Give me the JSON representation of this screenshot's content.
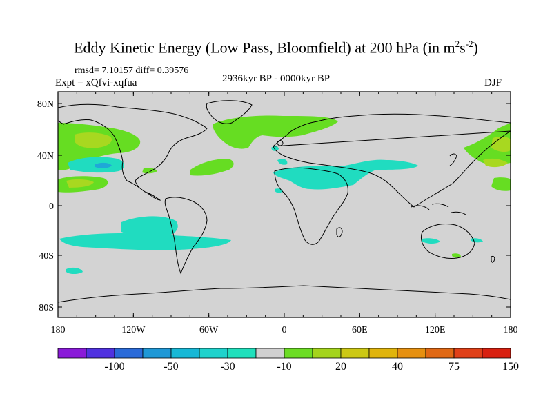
{
  "title": {
    "text": "Eddy Kinetic Energy (Low Pass, Bloomfield) at 200 hPa (in m",
    "sup1": "2",
    "mid": "s",
    "sup2": "-2",
    "close": ")"
  },
  "stats": "rmsd= 7.10157 diff= 0.39576",
  "experiment": "Expt = xQfvi-xqfua",
  "period": "2936kyr BP - 0000kyr BP",
  "season": "DJF",
  "lat_labels": [
    "80N",
    "40N",
    "0",
    "40S",
    "80S"
  ],
  "lon_labels": [
    "180",
    "120W",
    "60W",
    "0",
    "60E",
    "120E",
    "180"
  ],
  "colorbar": {
    "colors": [
      "#8a1ad8",
      "#5032e0",
      "#2a6ad8",
      "#1f98d6",
      "#17b8d6",
      "#1fd2cc",
      "#20e0bc",
      "#d0d0d0",
      "#6cdc24",
      "#a4d41c",
      "#ccc814",
      "#e0b40c",
      "#e69010",
      "#e06814",
      "#e04018",
      "#d82010"
    ],
    "labels": [
      "-100",
      "-50",
      "-30",
      "-10",
      "20",
      "40",
      "75",
      "150"
    ]
  },
  "field_colors": {
    "background": "#d3d3d3",
    "cyan": "#20dcc0",
    "green": "#66dd22",
    "yellowgreen": "#a8d820",
    "blue": "#1fa8d8"
  }
}
